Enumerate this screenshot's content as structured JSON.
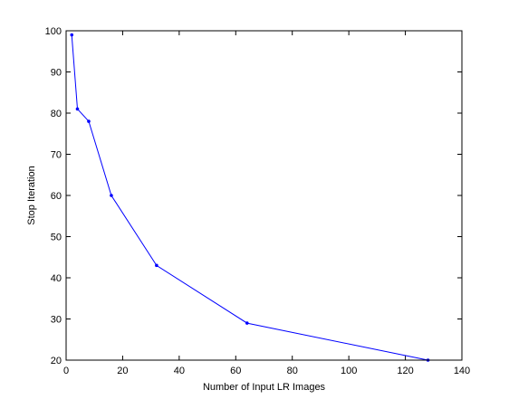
{
  "chart_data": {
    "type": "line",
    "title": "",
    "xlabel": "Number of Input LR Images",
    "ylabel": "Stop Iteration",
    "xlim": [
      0,
      140
    ],
    "ylim": [
      20,
      100
    ],
    "x_ticks": [
      0,
      20,
      40,
      60,
      80,
      100,
      120,
      140
    ],
    "y_ticks": [
      20,
      30,
      40,
      50,
      60,
      70,
      80,
      90,
      100
    ],
    "grid": false,
    "legend": "none",
    "series": [
      {
        "color": "#0000ff",
        "marker": "point",
        "x": [
          2,
          4,
          8,
          16,
          32,
          64,
          128
        ],
        "y": [
          99,
          81,
          78,
          60,
          43,
          29,
          20
        ]
      }
    ]
  }
}
